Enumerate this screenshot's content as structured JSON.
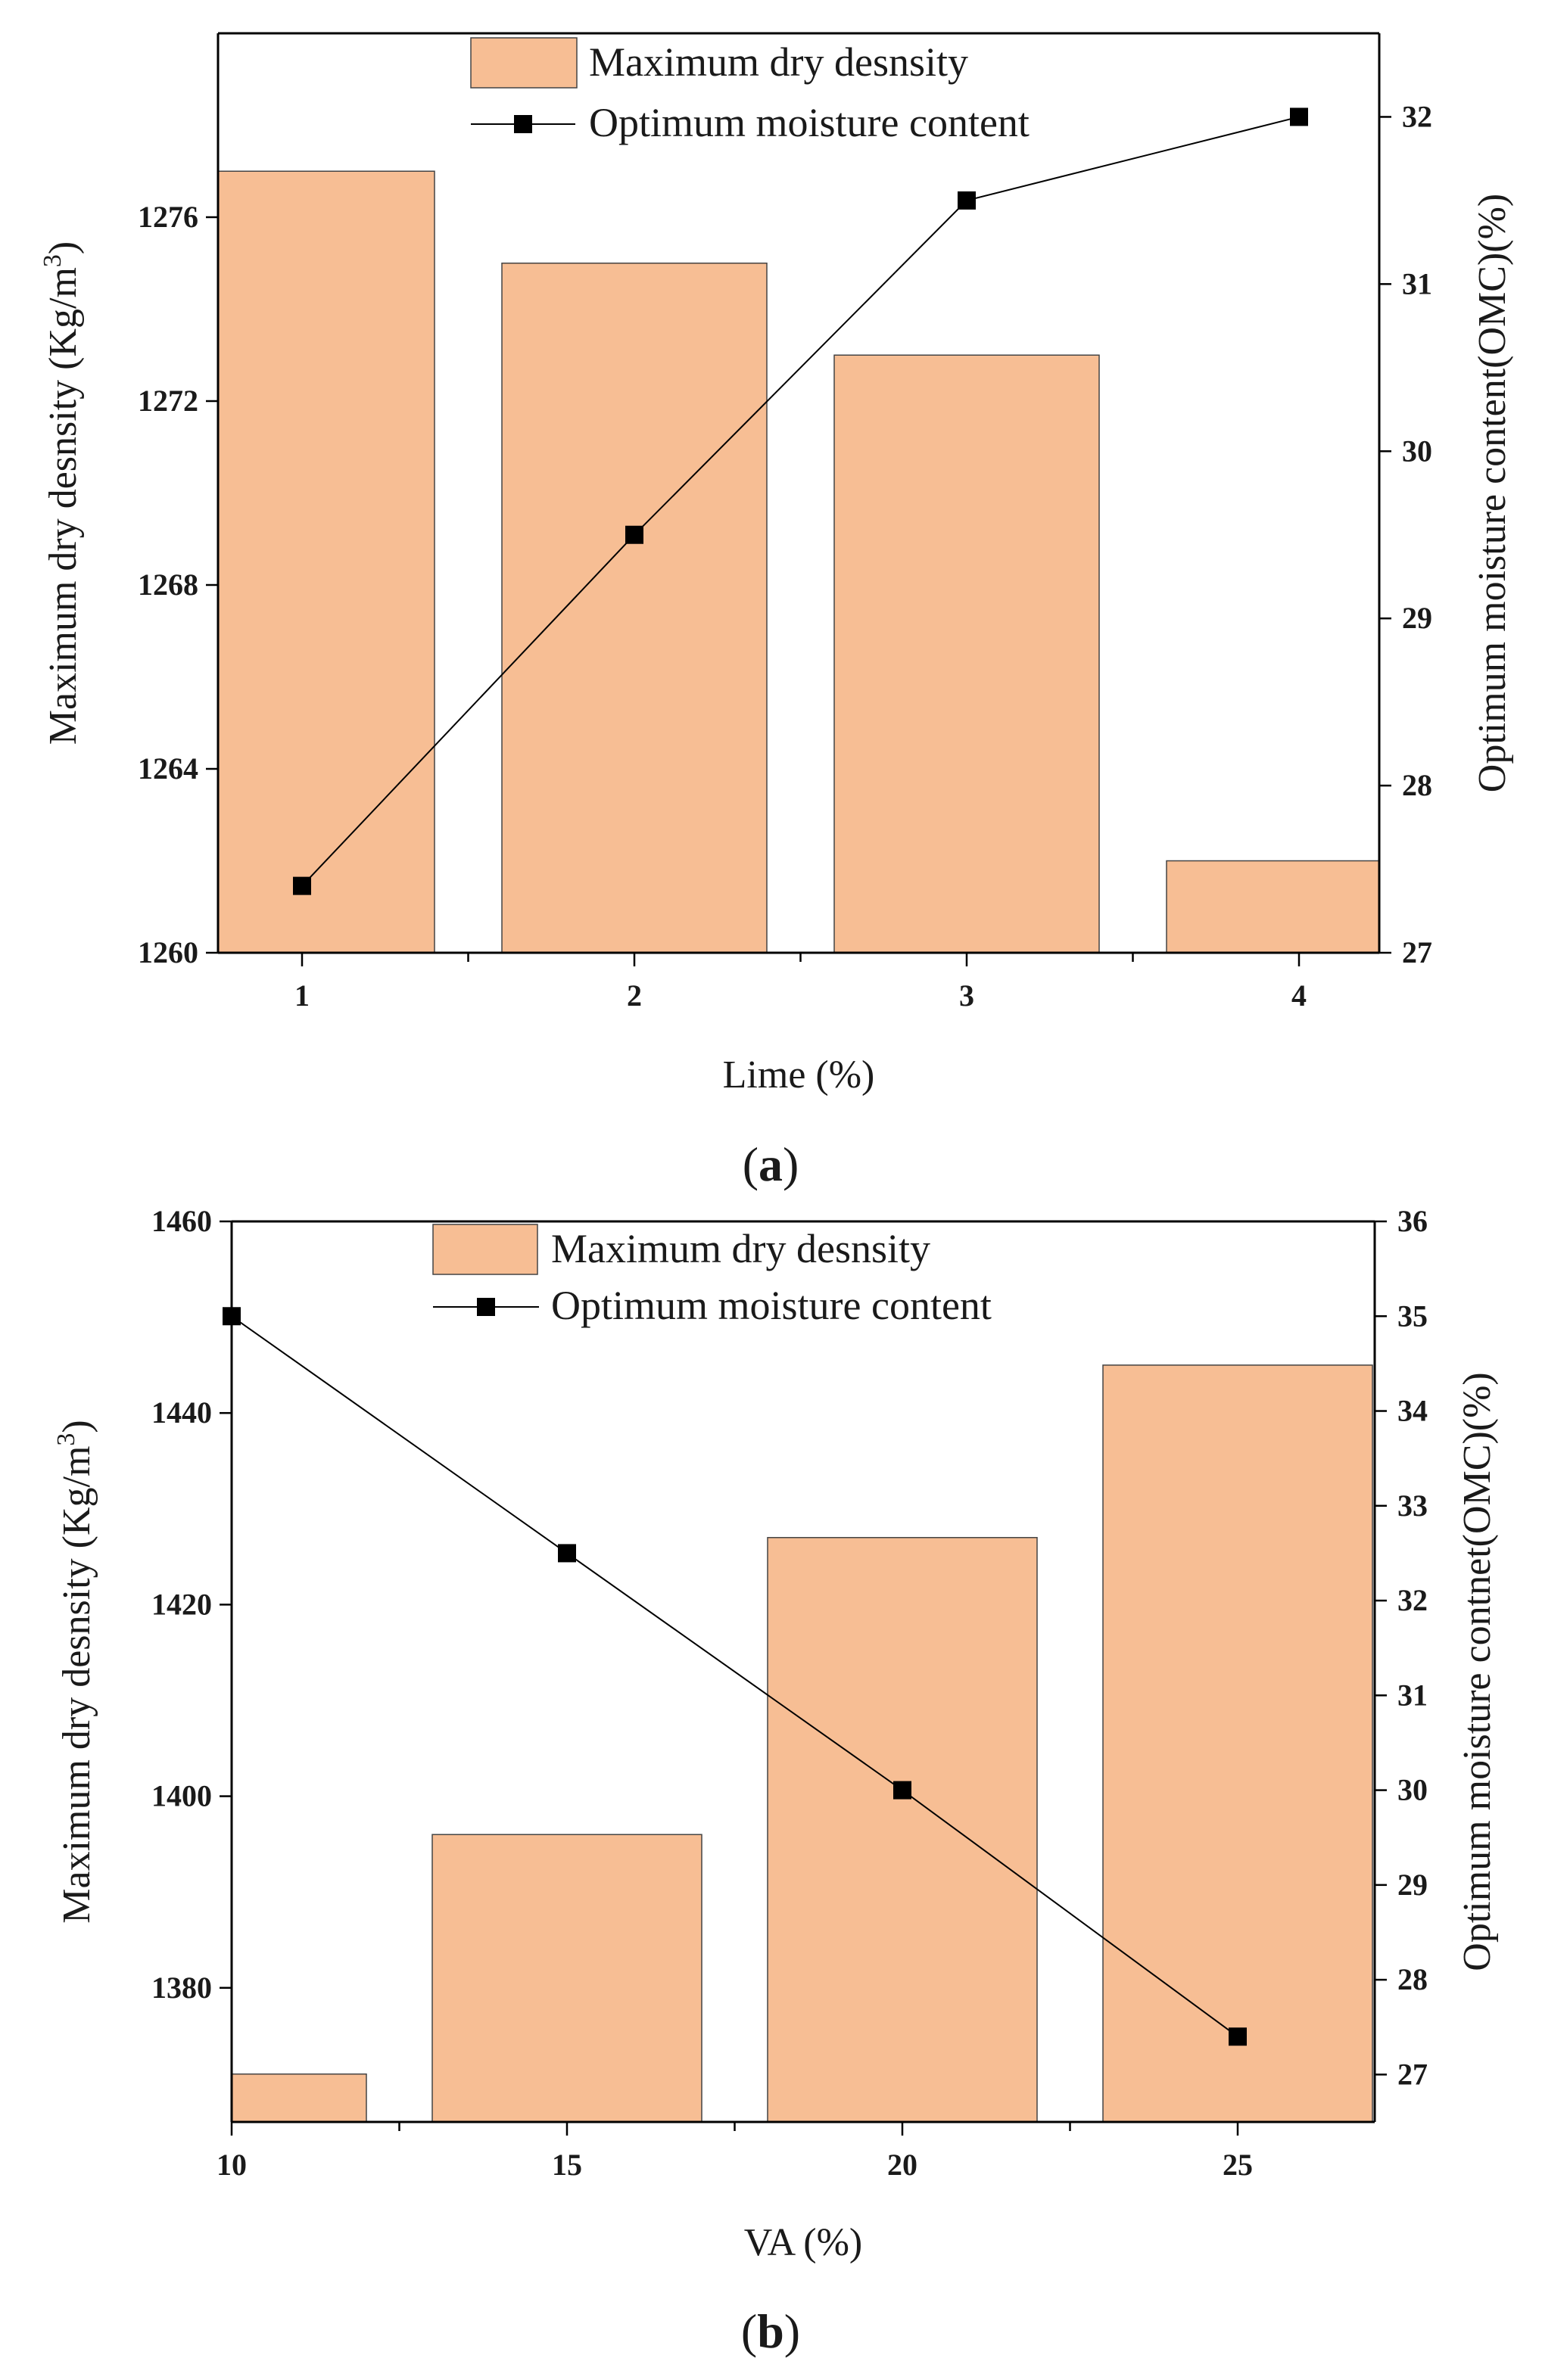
{
  "chart_data": [
    {
      "type": "bar",
      "panel_label": "a",
      "categories": [
        "1",
        "2",
        "3",
        "4"
      ],
      "xlabel": "Lime (%)",
      "ylabel": "Maximum dry desnsity (Kg/m",
      "ylabel_sup": "3",
      "ylabel_end": ")",
      "y2label": "Optimum moisture content(OMC)(%)",
      "ylim": [
        1260,
        1280
      ],
      "yticks": [
        1260,
        1264,
        1268,
        1272,
        1276
      ],
      "y2lim": [
        27,
        32.5
      ],
      "y2ticks": [
        27,
        28,
        29,
        30,
        31,
        32
      ],
      "grid": false,
      "legend_position": "top-center",
      "series": [
        {
          "name": "Maximum dry desnsity",
          "type": "bar",
          "axis": "left",
          "color": "#f7be94",
          "values": [
            1277,
            1275,
            1273,
            1262
          ]
        },
        {
          "name": "Optimum moisture content",
          "type": "line",
          "axis": "right",
          "color": "#000000",
          "values": [
            27.4,
            29.5,
            31.5,
            32
          ]
        }
      ]
    },
    {
      "type": "bar",
      "panel_label": "b",
      "categories": [
        "10",
        "15",
        "20",
        "25"
      ],
      "xlabel": "VA (%)",
      "ylabel": "Maximum dry desnsity (Kg/m",
      "ylabel_sup": "3",
      "ylabel_end": ")",
      "y2label": "Optimum moisture contnet(OMC)(%)",
      "ylim": [
        1366,
        1460
      ],
      "yticks": [
        1380,
        1400,
        1420,
        1440,
        1460
      ],
      "y2lim": [
        26.5,
        36
      ],
      "y2ticks": [
        27,
        28,
        29,
        30,
        31,
        32,
        33,
        34,
        35,
        36
      ],
      "grid": false,
      "legend_position": "top-center",
      "series": [
        {
          "name": "Maximum dry desnsity",
          "type": "bar",
          "axis": "left",
          "color": "#f7be94",
          "values": [
            1371,
            1396,
            1427,
            1445
          ]
        },
        {
          "name": "Optimum moisture content",
          "type": "line",
          "axis": "right",
          "color": "#000000",
          "values": [
            35,
            32.5,
            30,
            27.4
          ]
        }
      ]
    }
  ]
}
